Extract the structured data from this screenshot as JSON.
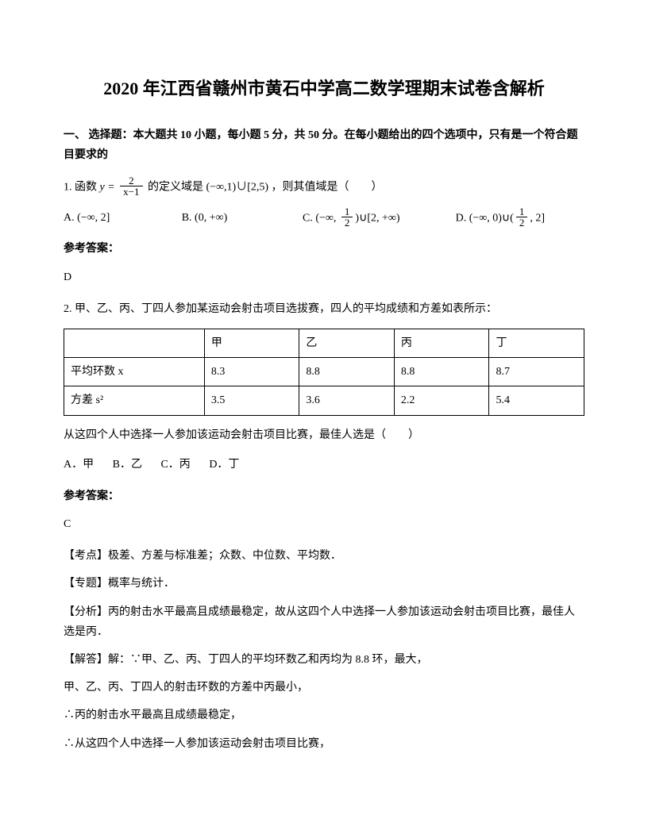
{
  "title": "2020 年江西省赣州市黄石中学高二数学理期末试卷含解析",
  "sectionHeader": "一、 选择题：本大题共 10 小题，每小题 5 分，共 50 分。在每小题给出的四个选项中，只有是一个符合题目要求的",
  "q1": {
    "prefix": "1. 函数",
    "yeq": "y = ",
    "fracNum": "2",
    "fracDen": "x−1",
    "midText": " 的定义域是",
    "domain": "(−∞,1)∪[2,5)",
    "suffix": "，则其值域是（　　）",
    "optA": "A.",
    "optAval": "(−∞, 2]",
    "optB": "B.",
    "optBval": "(0, +∞)",
    "optC": "C.",
    "optCfrac1Num": "1",
    "optCfrac1Den": "2",
    "optCmid": ")∪[2, +∞)",
    "optCprefix": "(−∞, ",
    "optD": "D.",
    "optDprefix": "(−∞, 0)∪(",
    "optDfracNum": "1",
    "optDfracDen": "2",
    "optDsuffix": ", 2]"
  },
  "answerLabel": "参考答案：",
  "q1Answer": "D",
  "q2": {
    "text": "2. 甲、乙、丙、丁四人参加某运动会射击项目选拔赛，四人的平均成绩和方差如表所示：",
    "tableHeader": [
      "",
      "甲",
      "乙",
      "丙",
      "丁"
    ],
    "row1Label": "平均环数 x",
    "row1": [
      "8.3",
      "8.8",
      "8.8",
      "8.7"
    ],
    "row2Label": "方差 s²",
    "row2": [
      "3.5",
      "3.6",
      "2.2",
      "5.4"
    ],
    "followText": "从这四个人中选择一人参加该运动会射击项目比赛，最佳人选是（　　）",
    "choices": {
      "a": "A．甲",
      "b": "B．乙",
      "c": "C．丙",
      "d": "D．丁"
    },
    "answer": "C",
    "kaodian": "【考点】极差、方差与标准差；众数、中位数、平均数．",
    "zhuanti": "【专题】概率与统计．",
    "fenxi": "【分析】丙的射击水平最高且成绩最稳定，故从这四个人中选择一人参加该运动会射击项目比赛，最佳人选是丙．",
    "jieda1": "【解答】解：∵甲、乙、丙、丁四人的平均环数乙和丙均为 8.8 环，最大，",
    "jieda2": "甲、乙、丙、丁四人的射击环数的方差中丙最小，",
    "jieda3": "∴丙的射击水平最高且成绩最稳定，",
    "jieda4": "∴从这四个人中选择一人参加该运动会射击项目比赛，"
  }
}
